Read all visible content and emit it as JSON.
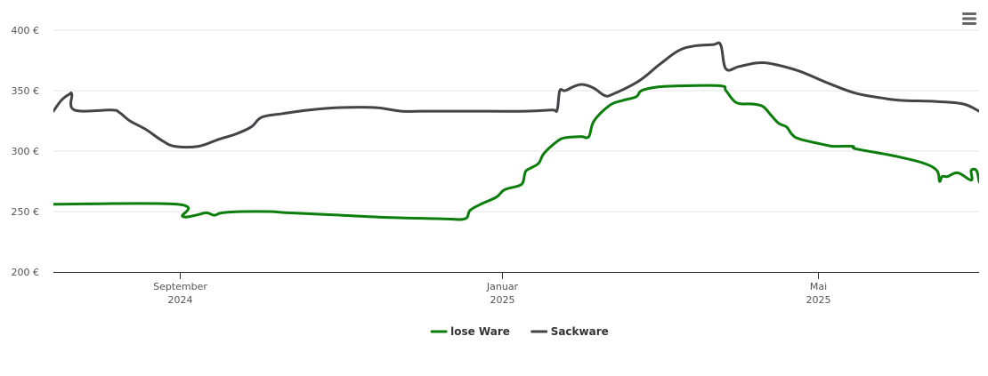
{
  "chart_data": {
    "type": "line",
    "title": "",
    "xlabel": "",
    "ylabel": "",
    "currency_suffix": " €",
    "ylim": [
      200,
      400
    ],
    "yticks": [
      200,
      250,
      300,
      350,
      400
    ],
    "ytick_labels": [
      "200 €",
      "250 €",
      "300 €",
      "350 €",
      "400 €"
    ],
    "xlim": [
      "2024-07-15",
      "2025-07-01"
    ],
    "xticks": [
      {
        "date": "2024-09-01",
        "month": "September",
        "year": "2024"
      },
      {
        "date": "2025-01-01",
        "month": "Januar",
        "year": "2025"
      },
      {
        "date": "2025-05-01",
        "month": "Mai",
        "year": "2025"
      }
    ],
    "grid": true,
    "legend_position": "bottom-center",
    "series": [
      {
        "name": "lose Ware",
        "color": "#0a7d0a",
        "points": [
          [
            "2024-07-15",
            256
          ],
          [
            "2024-08-31",
            256
          ],
          [
            "2024-09-02",
            246
          ],
          [
            "2024-09-07",
            247
          ],
          [
            "2024-09-11",
            249
          ],
          [
            "2024-09-14",
            247
          ],
          [
            "2024-09-17",
            249
          ],
          [
            "2024-09-25",
            250
          ],
          [
            "2024-10-05",
            250
          ],
          [
            "2024-10-12",
            249
          ],
          [
            "2024-11-01",
            247
          ],
          [
            "2024-11-20",
            245
          ],
          [
            "2024-12-10",
            244
          ],
          [
            "2024-12-18",
            244
          ],
          [
            "2024-12-20",
            251
          ],
          [
            "2024-12-24",
            256
          ],
          [
            "2024-12-30",
            262
          ],
          [
            "2025-01-02",
            268
          ],
          [
            "2025-01-07",
            271
          ],
          [
            "2025-01-09",
            274
          ],
          [
            "2025-01-10",
            283
          ],
          [
            "2025-01-12",
            286
          ],
          [
            "2025-01-15",
            290
          ],
          [
            "2025-01-17",
            298
          ],
          [
            "2025-01-22",
            308
          ],
          [
            "2025-01-25",
            311
          ],
          [
            "2025-01-31",
            312
          ],
          [
            "2025-02-03",
            312
          ],
          [
            "2025-02-05",
            325
          ],
          [
            "2025-02-11",
            338
          ],
          [
            "2025-02-16",
            342
          ],
          [
            "2025-02-21",
            345
          ],
          [
            "2025-02-23",
            350
          ],
          [
            "2025-03-01",
            353
          ],
          [
            "2025-03-10",
            354
          ],
          [
            "2025-03-25",
            354
          ],
          [
            "2025-03-27",
            350
          ],
          [
            "2025-03-31",
            340
          ],
          [
            "2025-04-06",
            339
          ],
          [
            "2025-04-10",
            337
          ],
          [
            "2025-04-13",
            330
          ],
          [
            "2025-04-16",
            323
          ],
          [
            "2025-04-19",
            320
          ],
          [
            "2025-04-21",
            314
          ],
          [
            "2025-04-24",
            310
          ],
          [
            "2025-05-04",
            305
          ],
          [
            "2025-05-07",
            304
          ],
          [
            "2025-05-14",
            304
          ],
          [
            "2025-05-15",
            302
          ],
          [
            "2025-05-25",
            298
          ],
          [
            "2025-06-01",
            295
          ],
          [
            "2025-06-10",
            290
          ],
          [
            "2025-06-15",
            284
          ],
          [
            "2025-06-19",
            279
          ],
          [
            "2025-06-28",
            276
          ],
          [
            "2025-06-31",
            275
          ],
          [
            "2025-06-16",
            275
          ],
          [
            "2025-06-17",
            279
          ],
          [
            "2025-06-23",
            282
          ],
          [
            "2025-06-28",
            284
          ],
          [
            "2025-06-30",
            284
          ],
          [
            "2025-07-01",
            275
          ]
        ]
      },
      {
        "name": "Sackware",
        "color": "#434348",
        "points": [
          [
            "2024-07-15",
            333
          ],
          [
            "2024-07-18",
            342
          ],
          [
            "2024-07-21",
            347
          ],
          [
            "2024-07-22",
            347
          ],
          [
            "2024-07-23",
            334
          ],
          [
            "2024-08-06",
            334
          ],
          [
            "2024-08-09",
            332
          ],
          [
            "2024-08-13",
            325
          ],
          [
            "2024-08-19",
            318
          ],
          [
            "2024-08-25",
            309
          ],
          [
            "2024-08-30",
            304
          ],
          [
            "2024-09-08",
            304
          ],
          [
            "2024-09-16",
            310
          ],
          [
            "2024-09-22",
            314
          ],
          [
            "2024-09-28",
            320
          ],
          [
            "2024-10-02",
            328
          ],
          [
            "2024-10-10",
            331
          ],
          [
            "2024-10-20",
            334
          ],
          [
            "2024-11-01",
            336
          ],
          [
            "2024-11-14",
            336
          ],
          [
            "2024-11-24",
            333
          ],
          [
            "2024-12-01",
            333
          ],
          [
            "2024-12-20",
            333
          ],
          [
            "2025-01-10",
            333
          ],
          [
            "2025-01-20",
            334
          ],
          [
            "2025-01-22",
            334
          ],
          [
            "2025-01-23",
            350
          ],
          [
            "2025-01-25",
            350
          ],
          [
            "2025-01-29",
            354
          ],
          [
            "2025-02-01",
            355
          ],
          [
            "2025-02-05",
            352
          ],
          [
            "2025-02-09",
            346
          ],
          [
            "2025-02-12",
            347
          ],
          [
            "2025-02-22",
            358
          ],
          [
            "2025-03-02",
            372
          ],
          [
            "2025-03-09",
            383
          ],
          [
            "2025-03-15",
            387
          ],
          [
            "2025-03-22",
            388
          ],
          [
            "2025-03-25",
            388
          ],
          [
            "2025-03-27",
            368
          ],
          [
            "2025-04-01",
            370
          ],
          [
            "2025-04-08",
            373
          ],
          [
            "2025-04-14",
            372
          ],
          [
            "2025-04-24",
            366
          ],
          [
            "2025-05-05",
            356
          ],
          [
            "2025-05-15",
            348
          ],
          [
            "2025-05-25",
            344
          ],
          [
            "2025-06-01",
            342
          ],
          [
            "2025-06-15",
            341
          ],
          [
            "2025-06-25",
            339
          ],
          [
            "2025-07-01",
            333
          ]
        ]
      }
    ]
  },
  "toolbar": {
    "menu_icon": "hamburger-menu-icon"
  }
}
